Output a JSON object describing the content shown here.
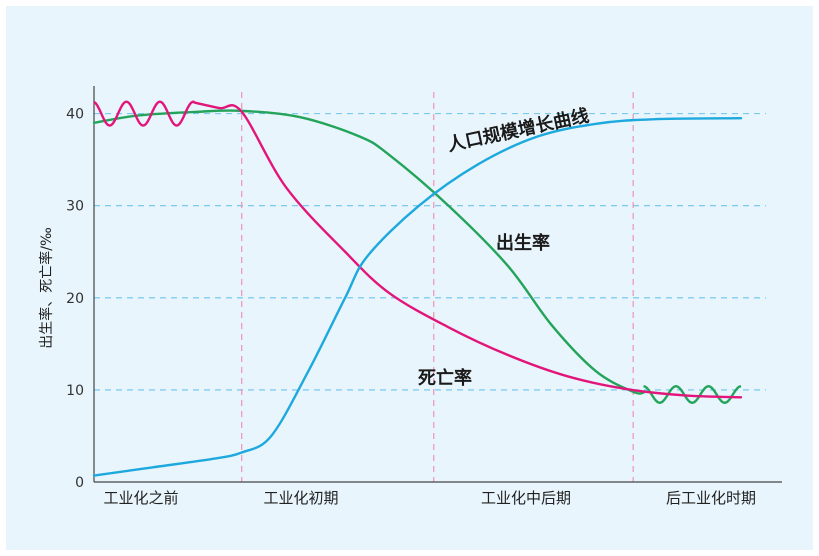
{
  "chart_data": {
    "type": "line",
    "ylabel": "出生率、死亡率/‰",
    "ylim": [
      0,
      43
    ],
    "yticks": [
      {
        "value": 0,
        "label": "0"
      },
      {
        "value": 10,
        "label": "10"
      },
      {
        "value": 20,
        "label": "20"
      },
      {
        "value": 30,
        "label": "30"
      },
      {
        "value": 40,
        "label": "40"
      }
    ],
    "stages": [
      "工业化之前",
      "工业化初期",
      "工业化中后期",
      "后工业化时期"
    ],
    "series": [
      {
        "name": "出生率",
        "color": "#23a45a",
        "points": [
          [
            0,
            39
          ],
          [
            0.3,
            39.8
          ],
          [
            0.7,
            40.2
          ],
          [
            1,
            40.3
          ],
          [
            1.4,
            39.6
          ],
          [
            1.8,
            37.5
          ],
          [
            2,
            35.5
          ],
          [
            2.4,
            30
          ],
          [
            2.8,
            23.5
          ],
          [
            3.1,
            17
          ],
          [
            3.4,
            12
          ],
          [
            3.65,
            9.8
          ],
          [
            3.72,
            9.7
          ]
        ],
        "wiggle": {
          "start": 3.72,
          "end": 4.38,
          "center": 9.5,
          "amplitude": 0.9,
          "cycles": 3
        }
      },
      {
        "name": "死亡率",
        "color": "#e2157a",
        "wiggle": {
          "start": 0,
          "end": 0.68,
          "center": 40,
          "amplitude": 1.3,
          "cycles": 3
        },
        "points": [
          [
            0.68,
            41.2
          ],
          [
            0.85,
            40.6
          ],
          [
            1,
            40.2
          ],
          [
            1.3,
            32
          ],
          [
            1.7,
            25
          ],
          [
            2,
            20.5
          ],
          [
            2.4,
            16.8
          ],
          [
            2.8,
            13.8
          ],
          [
            3.2,
            11.5
          ],
          [
            3.6,
            10.1
          ],
          [
            4,
            9.4
          ],
          [
            4.38,
            9.2
          ]
        ]
      },
      {
        "name": "人口规模增长曲线",
        "color": "#1ea9de",
        "points": [
          [
            0,
            0.7
          ],
          [
            0.4,
            1.6
          ],
          [
            0.8,
            2.5
          ],
          [
            1,
            3.2
          ],
          [
            1.2,
            5
          ],
          [
            1.45,
            12
          ],
          [
            1.7,
            20
          ],
          [
            1.85,
            24.5
          ],
          [
            2.2,
            30
          ],
          [
            2.6,
            34.5
          ],
          [
            3,
            37.5
          ],
          [
            3.4,
            38.9
          ],
          [
            3.8,
            39.4
          ],
          [
            4.38,
            39.5
          ]
        ]
      }
    ],
    "stage_boundaries": [
      1,
      2.3,
      3.65
    ],
    "annotations": [
      {
        "text": "人口规模增长曲线",
        "series": "人口规模增长曲线"
      },
      {
        "text": "出生率",
        "series": "出生率"
      },
      {
        "text": "死亡率",
        "series": "死亡率"
      }
    ],
    "grid": true
  }
}
